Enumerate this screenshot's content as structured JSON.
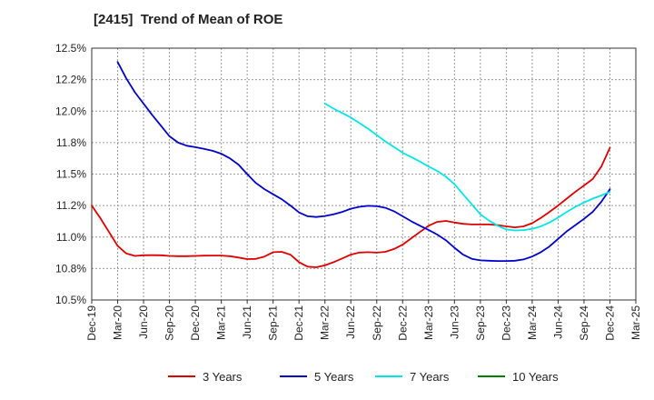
{
  "chart_data": {
    "type": "line",
    "title": "[2415]  Trend of Mean of ROE",
    "xlabel": "",
    "ylabel": "",
    "ylim": [
      10.5,
      12.5
    ],
    "y_ticks": [
      "10.5%",
      "10.8%",
      "11.0%",
      "11.2%",
      "11.5%",
      "11.8%",
      "12.0%",
      "12.2%",
      "12.5%"
    ],
    "categories": [
      "Dec-19",
      "Mar-20",
      "Jun-20",
      "Sep-20",
      "Dec-20",
      "Mar-21",
      "Jun-21",
      "Sep-21",
      "Dec-21",
      "Mar-22",
      "Jun-22",
      "Sep-22",
      "Dec-22",
      "Mar-23",
      "Jun-23",
      "Sep-23",
      "Dec-23",
      "Mar-24",
      "Jun-24",
      "Sep-24",
      "Dec-24",
      "Mar-25"
    ],
    "grid": true,
    "legend_position": "bottom",
    "series": [
      {
        "name": "3 Years",
        "color": "#dd0000",
        "x": [
          0,
          0.333,
          0.667,
          1,
          1.333,
          1.667,
          2,
          2.333,
          2.667,
          3,
          3.333,
          3.667,
          4,
          4.333,
          4.667,
          5,
          5.333,
          5.667,
          6,
          6.333,
          6.667,
          7,
          7.333,
          7.667,
          8,
          8.333,
          8.667,
          9,
          9.333,
          9.667,
          10,
          10.333,
          10.667,
          11,
          11.333,
          11.667,
          12,
          12.333,
          12.667,
          13,
          13.333,
          13.667,
          14,
          14.333,
          14.667,
          15,
          15.333,
          15.667,
          16,
          16.333,
          16.667,
          17,
          17.333,
          17.667,
          18,
          18.333,
          18.667,
          19,
          19.333,
          19.667,
          20
        ],
        "values": [
          11.25,
          11.15,
          11.04,
          10.93,
          10.87,
          10.85,
          10.855,
          10.856,
          10.855,
          10.85,
          10.848,
          10.848,
          10.85,
          10.852,
          10.853,
          10.853,
          10.848,
          10.837,
          10.825,
          10.826,
          10.845,
          10.88,
          10.883,
          10.86,
          10.8,
          10.765,
          10.76,
          10.775,
          10.8,
          10.83,
          10.86,
          10.877,
          10.88,
          10.876,
          10.883,
          10.905,
          10.94,
          10.99,
          11.04,
          11.09,
          11.12,
          11.128,
          11.115,
          11.105,
          11.1,
          11.1,
          11.1,
          11.095,
          11.085,
          11.077,
          11.085,
          11.11,
          11.152,
          11.2,
          11.25,
          11.305,
          11.36,
          11.41,
          11.46,
          11.56,
          11.71
        ]
      },
      {
        "name": "5 Years",
        "color": "#0000cc",
        "x": [
          1,
          1.333,
          1.667,
          2,
          2.333,
          2.667,
          3,
          3.333,
          3.667,
          4,
          4.333,
          4.667,
          5,
          5.333,
          5.667,
          6,
          6.333,
          6.667,
          7,
          7.333,
          7.667,
          8,
          8.333,
          8.667,
          9,
          9.333,
          9.667,
          10,
          10.333,
          10.667,
          11,
          11.333,
          11.667,
          12,
          12.333,
          12.667,
          13,
          13.333,
          13.667,
          14,
          14.333,
          14.667,
          15,
          15.333,
          15.667,
          16,
          16.333,
          16.667,
          17,
          17.333,
          17.667,
          18,
          18.333,
          18.667,
          19,
          19.333,
          19.667,
          20
        ],
        "values": [
          12.39,
          12.26,
          12.15,
          12.06,
          11.97,
          11.885,
          11.8,
          11.75,
          11.725,
          11.714,
          11.7,
          11.685,
          11.662,
          11.625,
          11.575,
          11.5,
          11.43,
          11.38,
          11.34,
          11.3,
          11.25,
          11.195,
          11.165,
          11.159,
          11.167,
          11.18,
          11.2,
          11.225,
          11.24,
          11.248,
          11.245,
          11.232,
          11.205,
          11.165,
          11.125,
          11.09,
          11.057,
          11.02,
          10.975,
          10.915,
          10.86,
          10.827,
          10.815,
          10.812,
          10.81,
          10.81,
          10.812,
          10.822,
          10.845,
          10.88,
          10.925,
          10.985,
          11.045,
          11.095,
          11.145,
          11.2,
          11.28,
          11.38
        ]
      },
      {
        "name": "7 Years",
        "color": "#00e5e5",
        "x": [
          9,
          9.333,
          9.667,
          10,
          10.333,
          10.667,
          11,
          11.333,
          11.667,
          12,
          12.333,
          12.667,
          13,
          13.333,
          13.667,
          14,
          14.333,
          14.667,
          15,
          15.333,
          15.667,
          16,
          16.333,
          16.667,
          17,
          17.333,
          17.667,
          18,
          18.333,
          18.667,
          19,
          19.333,
          19.667,
          20
        ],
        "values": [
          12.06,
          12.02,
          11.985,
          11.95,
          11.905,
          11.86,
          11.81,
          11.76,
          11.715,
          11.67,
          11.635,
          11.6,
          11.56,
          11.525,
          11.48,
          11.42,
          11.34,
          11.26,
          11.18,
          11.13,
          11.09,
          11.06,
          11.052,
          11.055,
          11.065,
          11.085,
          11.115,
          11.155,
          11.2,
          11.24,
          11.275,
          11.305,
          11.33,
          11.36
        ]
      },
      {
        "name": "10 Years",
        "color": "#008000",
        "x": [],
        "values": []
      }
    ]
  }
}
